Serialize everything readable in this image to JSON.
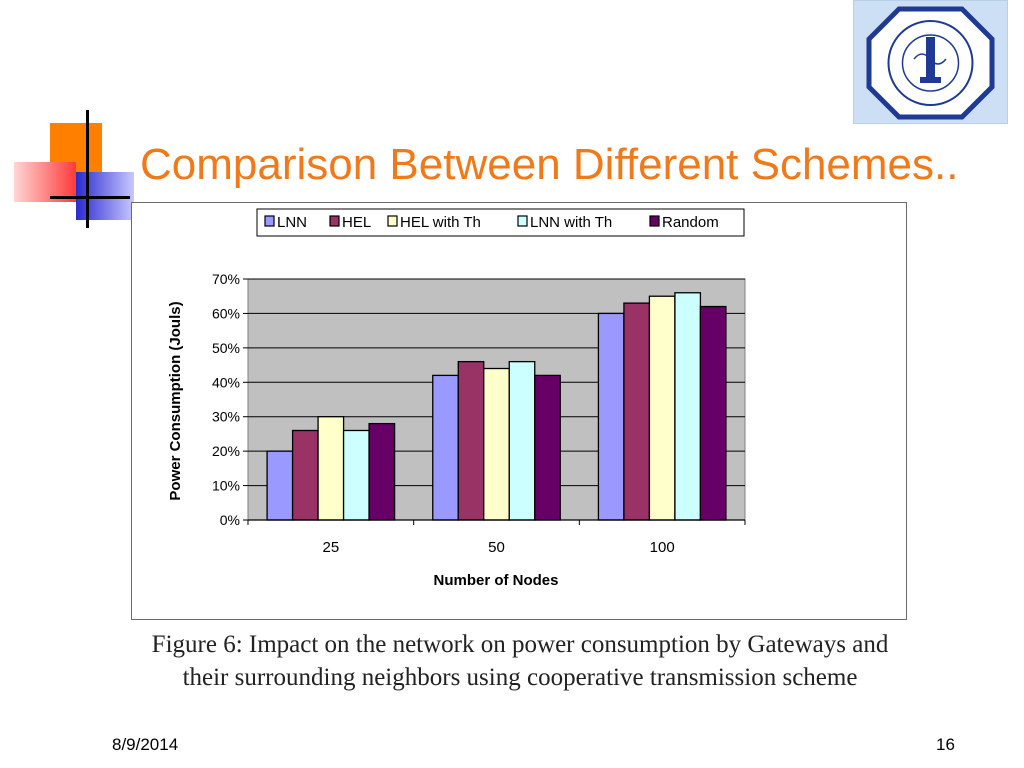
{
  "slide": {
    "title": "Comparison Between Different Schemes..",
    "caption": "Figure 6: Impact on the network on power consumption by Gateways and their surrounding neighbors using cooperative transmission scheme",
    "date": "8/9/2014",
    "page_number": "16"
  },
  "colors": {
    "title": "#f07a1a",
    "deco_orange": "#ff7f00",
    "deco_red": "#ff3030",
    "deco_blue": "#3030d8"
  },
  "chart_data": {
    "type": "bar",
    "title": "",
    "xlabel": "Number of Nodes",
    "ylabel": "Power Consumption (Jouls)",
    "categories": [
      "25",
      "50",
      "100"
    ],
    "ylim": [
      0,
      70
    ],
    "y_ticks": [
      "0%",
      "10%",
      "20%",
      "30%",
      "40%",
      "50%",
      "60%",
      "70%"
    ],
    "grid": true,
    "legend_position": "top",
    "series": [
      {
        "name": "LNN",
        "color": "#9999ff",
        "values": [
          20,
          42,
          60
        ]
      },
      {
        "name": "HEL",
        "color": "#993366",
        "values": [
          26,
          46,
          63
        ]
      },
      {
        "name": "HEL with Th",
        "color": "#ffffcc",
        "values": [
          30,
          44,
          65
        ]
      },
      {
        "name": "LNN with Th",
        "color": "#ccffff",
        "values": [
          26,
          46,
          66
        ]
      },
      {
        "name": "Random",
        "color": "#660066",
        "values": [
          28,
          42,
          62
        ]
      }
    ]
  }
}
